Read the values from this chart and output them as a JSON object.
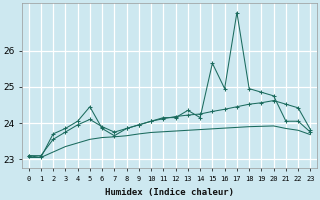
{
  "xlabel": "Humidex (Indice chaleur)",
  "bg_color": "#cde8f0",
  "grid_color": "#ffffff",
  "line_color": "#1b6b5e",
  "x": [
    0,
    1,
    2,
    3,
    4,
    5,
    6,
    7,
    8,
    9,
    10,
    11,
    12,
    13,
    14,
    15,
    16,
    17,
    18,
    19,
    20,
    21,
    22,
    23
  ],
  "line1": [
    23.1,
    23.05,
    23.7,
    23.85,
    24.05,
    24.45,
    23.85,
    23.65,
    23.85,
    23.95,
    24.05,
    24.15,
    24.15,
    24.35,
    24.15,
    25.65,
    24.95,
    27.05,
    24.95,
    24.85,
    24.75,
    24.05,
    24.05,
    23.75
  ],
  "line2": [
    23.1,
    23.1,
    23.55,
    23.75,
    23.95,
    24.1,
    23.9,
    23.75,
    23.85,
    23.95,
    24.05,
    24.12,
    24.18,
    24.22,
    24.25,
    24.32,
    24.38,
    24.45,
    24.52,
    24.56,
    24.62,
    24.52,
    24.42,
    23.82
  ],
  "line3": [
    23.05,
    23.05,
    23.2,
    23.35,
    23.45,
    23.55,
    23.6,
    23.62,
    23.65,
    23.7,
    23.74,
    23.76,
    23.78,
    23.8,
    23.82,
    23.84,
    23.86,
    23.88,
    23.9,
    23.91,
    23.92,
    23.85,
    23.8,
    23.68
  ],
  "ylim": [
    22.75,
    27.3
  ],
  "yticks": [
    23,
    24,
    25,
    26
  ],
  "xticks": [
    0,
    1,
    2,
    3,
    4,
    5,
    6,
    7,
    8,
    9,
    10,
    11,
    12,
    13,
    14,
    15,
    16,
    17,
    18,
    19,
    20,
    21,
    22,
    23
  ],
  "xtick_labels": [
    "0",
    "1",
    "2",
    "3",
    "4",
    "5",
    "6",
    "7",
    "8",
    "9",
    "10",
    "11",
    "12",
    "13",
    "14",
    "15",
    "16",
    "17",
    "18",
    "19",
    "20",
    "21",
    "22",
    "23"
  ]
}
